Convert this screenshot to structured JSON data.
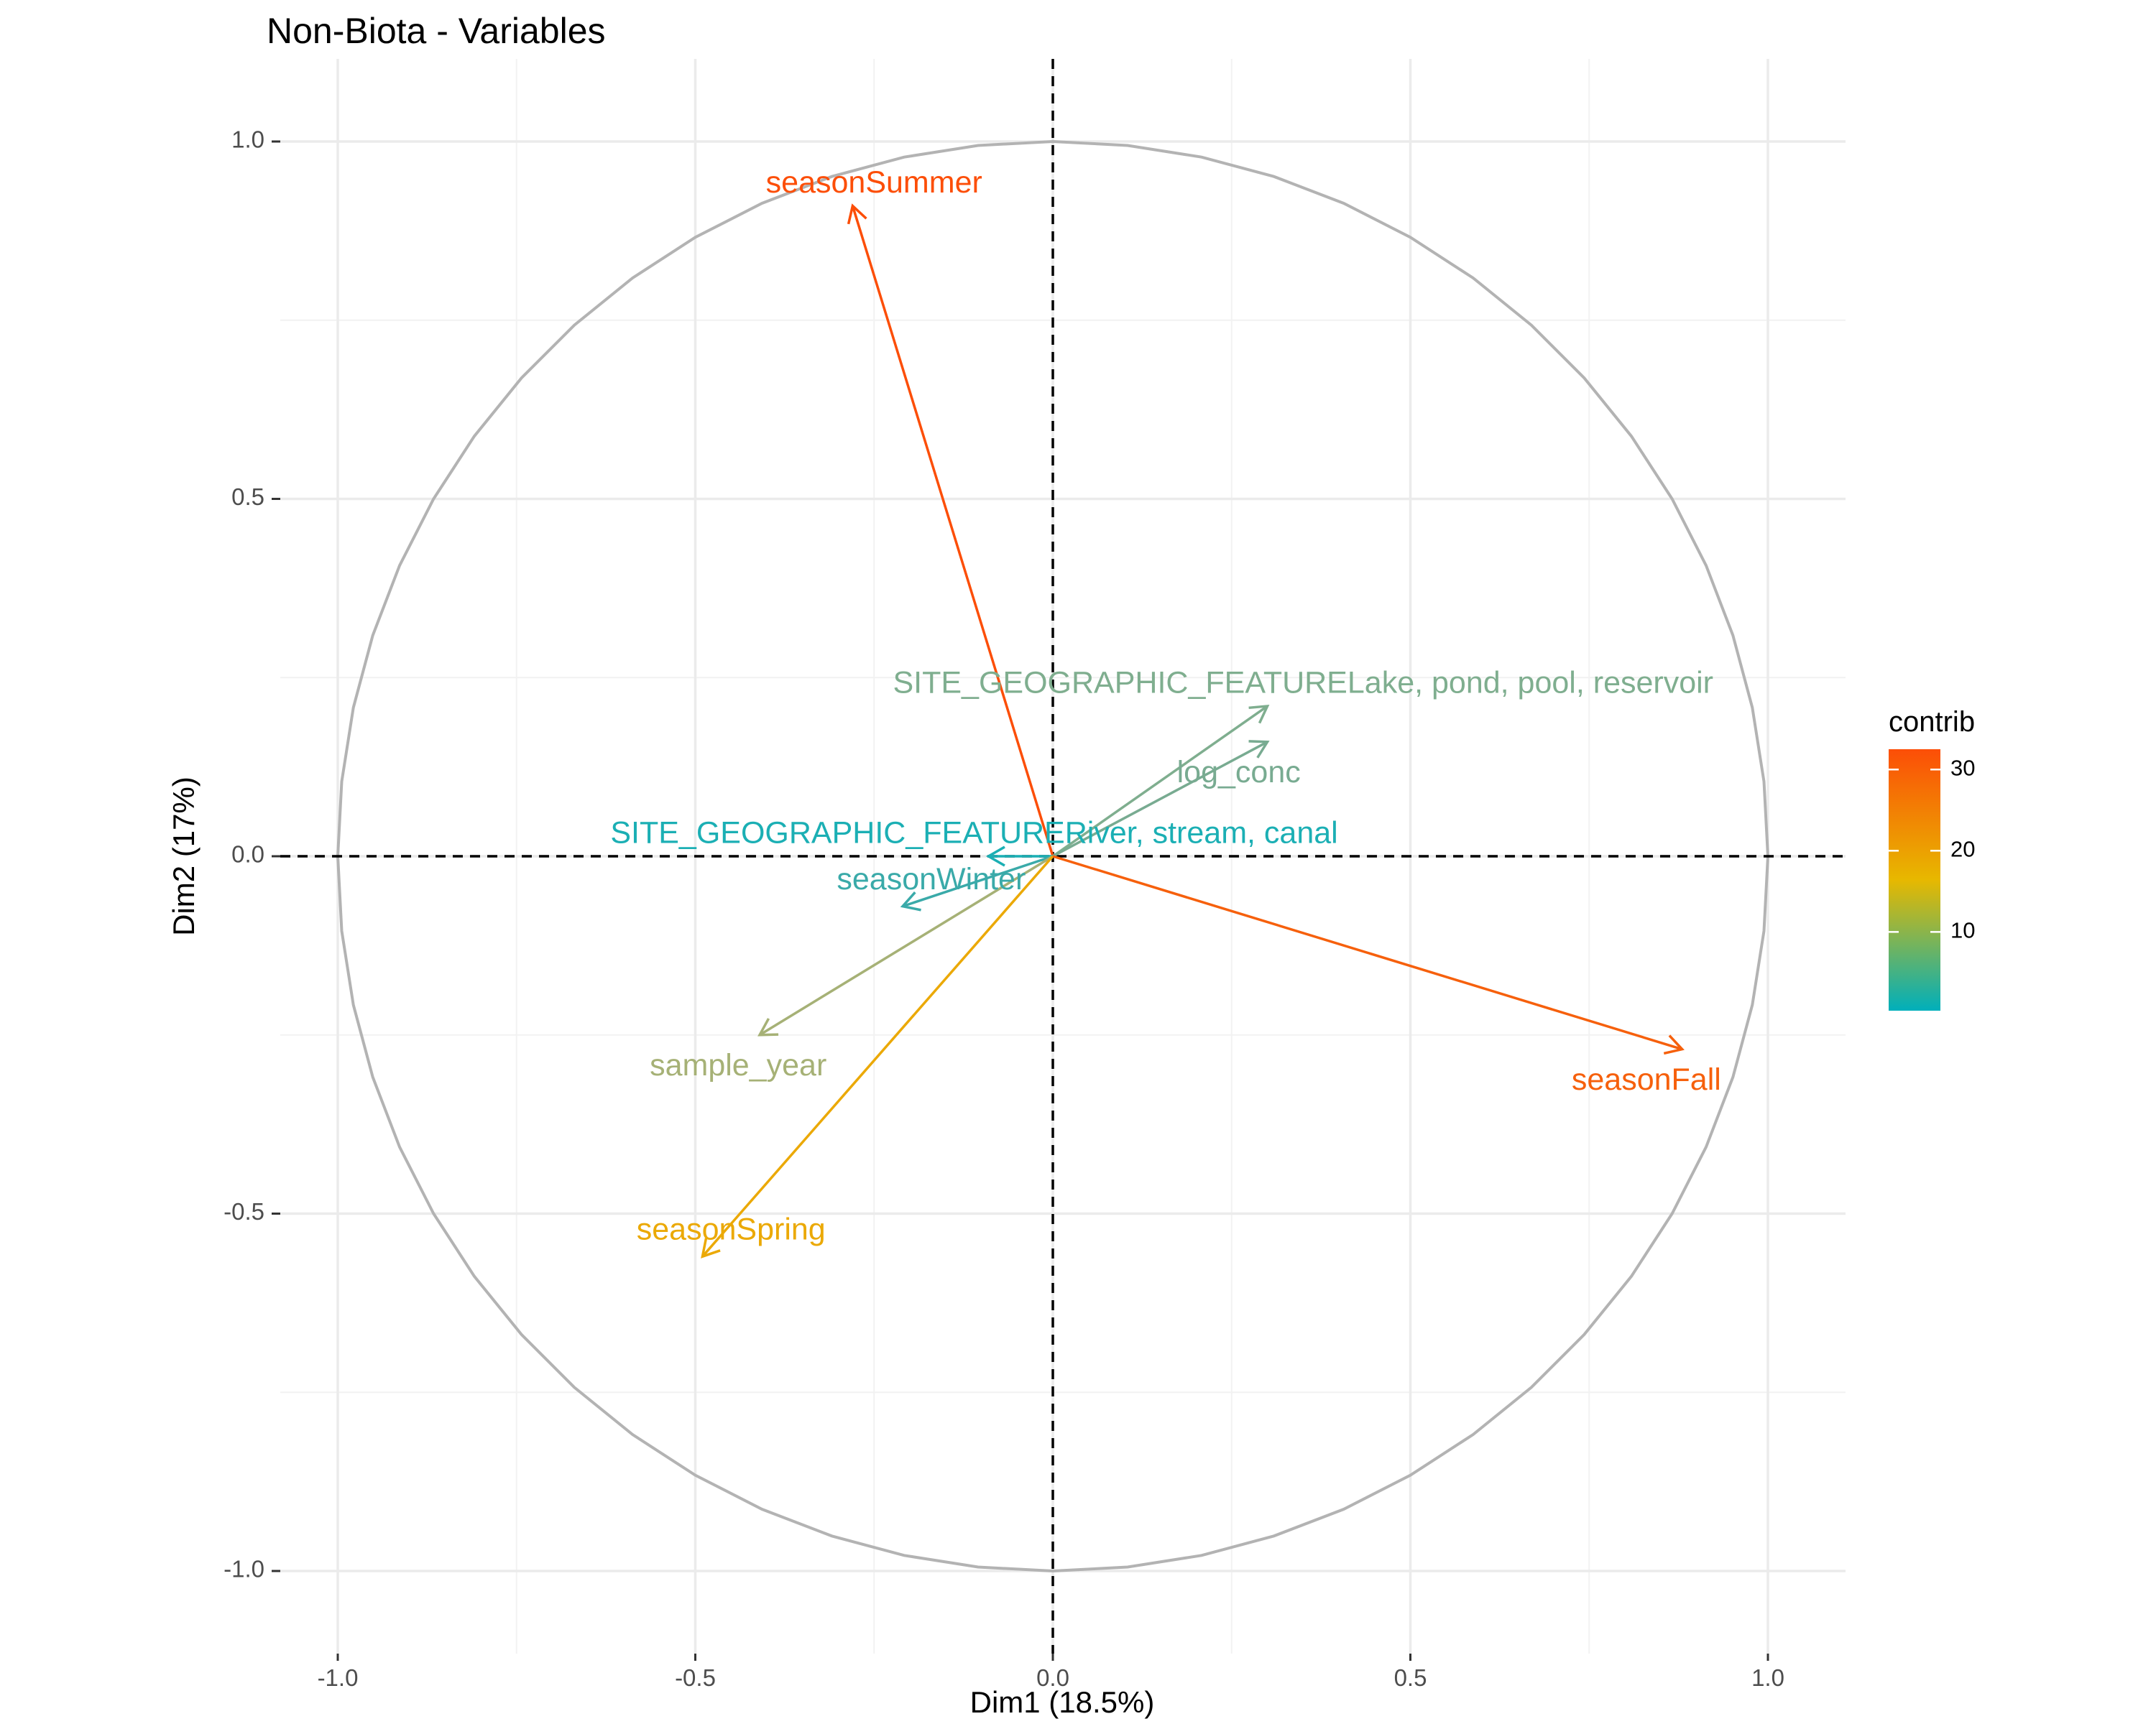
{
  "chart_data": {
    "type": "scatter",
    "title": "Non-Biota - Variables",
    "xlabel": "Dim1 (18.5%)",
    "ylabel": "Dim2 (17%)",
    "xlim": [
      -1.1,
      1.1
    ],
    "ylim": [
      -1.1,
      1.07
    ],
    "x_ticks": [
      -1.0,
      -0.5,
      0.0,
      0.5,
      1.0
    ],
    "x_tick_labels": [
      "-1.0",
      "-0.5",
      "0.0",
      "0.5",
      "1.0"
    ],
    "y_ticks": [
      -1.0,
      -0.5,
      0.0,
      0.5,
      1.0
    ],
    "y_tick_labels": [
      "-1.0",
      "-0.5",
      "0.0",
      "0.5",
      "1.0"
    ],
    "grid": true,
    "correlation_circle": true,
    "reference_lines": [
      {
        "axis": "x",
        "value": 0
      },
      {
        "axis": "y",
        "value": 0
      }
    ],
    "variables": [
      {
        "label": "seasonSummer",
        "x": -0.28,
        "y": 0.91,
        "contrib": 32.0,
        "color": "#fc4e08",
        "label_x": -0.25,
        "label_y": 0.94
      },
      {
        "label": "SITE_GEOGRAPHIC_FEATURELake, pond, pool, reservoir",
        "x": 0.3,
        "y": 0.21,
        "contrib": 6.5,
        "color": "#7fae8f",
        "label_x": 0.35,
        "label_y": 0.24
      },
      {
        "label": "log_conc",
        "x": 0.3,
        "y": 0.16,
        "contrib": 5.5,
        "color": "#78ab91",
        "label_x": 0.26,
        "label_y": 0.115
      },
      {
        "label": "SITE_GEOGRAPHIC_FEATURERiver, stream, canal",
        "x": -0.09,
        "y": 0.0,
        "contrib": 1.0,
        "color": "#1bafb4",
        "label_x": -0.11,
        "label_y": 0.03
      },
      {
        "label": "seasonWinter",
        "x": -0.21,
        "y": -0.07,
        "contrib": 2.0,
        "color": "#3aaaa9",
        "label_x": -0.17,
        "label_y": -0.035
      },
      {
        "label": "sample_year",
        "x": -0.41,
        "y": -0.25,
        "contrib": 11.0,
        "color": "#a6b176",
        "label_x": -0.44,
        "label_y": -0.295
      },
      {
        "label": "seasonSpring",
        "x": -0.49,
        "y": -0.56,
        "contrib": 21.5,
        "color": "#eba906",
        "label_x": -0.45,
        "label_y": -0.525
      },
      {
        "label": "seasonFall",
        "x": 0.88,
        "y": -0.27,
        "contrib": 30.0,
        "color": "#f6600c",
        "label_x": 0.83,
        "label_y": -0.315
      }
    ],
    "legend": {
      "title": "contrib",
      "placement": "right",
      "type": "gradient",
      "min": 0.3,
      "max": 32.5,
      "ticks": [
        10,
        20,
        30
      ],
      "tick_labels": [
        "10",
        "20",
        "30"
      ],
      "colors": [
        "#00afbb",
        "#e7b800",
        "#fc4e07"
      ]
    }
  }
}
